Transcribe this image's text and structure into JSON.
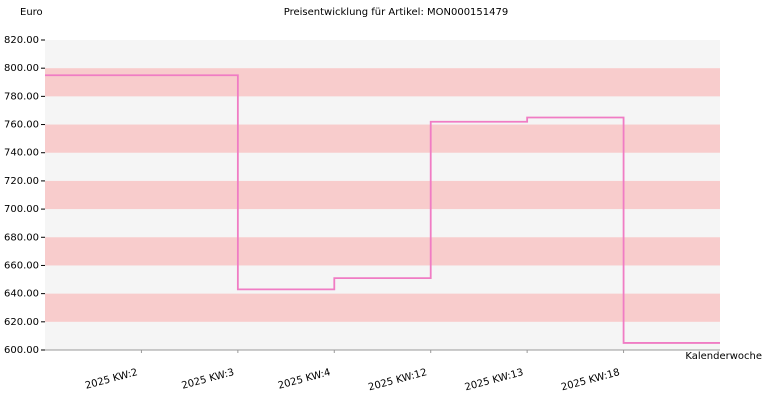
{
  "chart_data": {
    "type": "step",
    "title": "Preisentwicklung für Artikel: MON000151479",
    "y_label": "Euro",
    "x_label": "Kalenderwoche",
    "categories": [
      "2025 KW:2",
      "2025 KW:3",
      "2025 KW:4",
      "2025 KW:12",
      "2025 KW:13",
      "2025 KW:18"
    ],
    "series": [
      {
        "color": "#f07cc4",
        "values": [
          795,
          643,
          651,
          762,
          765,
          605
        ]
      }
    ],
    "ylim": [
      600,
      820
    ],
    "yticks": [
      {
        "value": 600,
        "label": "600.00"
      },
      {
        "value": 620,
        "label": "620.00"
      },
      {
        "value": 640,
        "label": "640.00"
      },
      {
        "value": 660,
        "label": "660.00"
      },
      {
        "value": 680,
        "label": "680.00"
      },
      {
        "value": 700,
        "label": "700.00"
      },
      {
        "value": 720,
        "label": "720.00"
      },
      {
        "value": 740,
        "label": "740.00"
      },
      {
        "value": 760,
        "label": "760.00"
      },
      {
        "value": 780,
        "label": "780.00"
      },
      {
        "value": 800,
        "label": "800.00"
      },
      {
        "value": 820,
        "label": "820.00"
      }
    ],
    "plot_background": "#f5f5f5",
    "band_color": "#f8cccc"
  }
}
